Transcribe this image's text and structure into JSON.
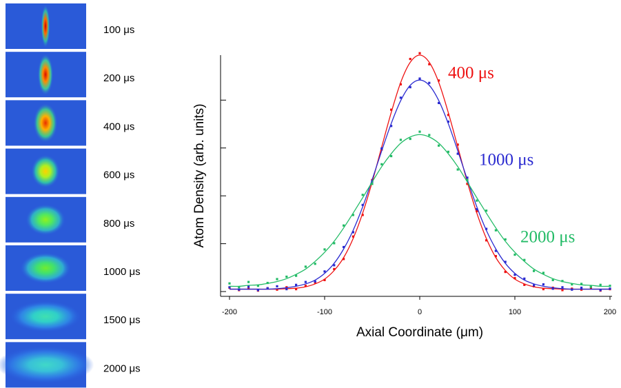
{
  "images": {
    "labels": [
      "100 μs",
      "200 μs",
      "400 μs",
      "600 μs",
      "800 μs",
      "1000 μs",
      "1500 μs",
      "2000 μs"
    ]
  },
  "chart_data": {
    "type": "scatter-fit",
    "xlabel": "Axial Coordinate (μm)",
    "ylabel": "Atom Density (arb. units)",
    "xlim": [
      -200,
      200
    ],
    "xticks": [
      -200,
      -100,
      0,
      100,
      200
    ],
    "ylim": [
      -0.1,
      4.94
    ],
    "yticks": [
      0,
      1,
      2,
      3,
      4
    ],
    "ytick_labels": false,
    "x": [
      -200,
      -190,
      -180,
      -170,
      -160,
      -150,
      -140,
      -130,
      -120,
      -110,
      -100,
      -90,
      -80,
      -70,
      -60,
      -50,
      -40,
      -30,
      -20,
      -10,
      0,
      10,
      20,
      30,
      40,
      50,
      60,
      70,
      80,
      90,
      100,
      110,
      120,
      130,
      140,
      150,
      160,
      170,
      180,
      190,
      200
    ],
    "series": [
      {
        "name": "400 μs",
        "color": "#ee1111",
        "values": [
          0.08,
          0.03,
          0.06,
          0.02,
          0.07,
          0.04,
          0.09,
          0.05,
          0.12,
          0.19,
          0.24,
          0.47,
          0.68,
          1.15,
          1.6,
          2.33,
          2.97,
          3.8,
          4.33,
          4.86,
          4.98,
          4.75,
          4.41,
          3.69,
          3.07,
          2.25,
          1.68,
          1.07,
          0.74,
          0.41,
          0.28,
          0.14,
          0.11,
          0.05,
          0.08,
          0.03,
          0.06,
          0.04,
          0.07,
          0.02,
          0.05
        ],
        "fit": [
          0.05,
          0.05,
          0.05,
          0.05,
          0.05,
          0.05,
          0.06,
          0.07,
          0.1,
          0.16,
          0.26,
          0.44,
          0.71,
          1.11,
          1.64,
          2.29,
          3.02,
          3.74,
          4.37,
          4.79,
          4.94,
          4.79,
          4.37,
          3.74,
          3.02,
          2.29,
          1.64,
          1.11,
          0.71,
          0.44,
          0.26,
          0.16,
          0.1,
          0.07,
          0.06,
          0.05,
          0.05,
          0.05,
          0.05,
          0.05,
          0.05
        ]
      },
      {
        "name": "1000 μs",
        "color": "#2a2ad0",
        "values": [
          0.09,
          0.04,
          0.1,
          0.03,
          0.07,
          0.11,
          0.05,
          0.14,
          0.2,
          0.21,
          0.42,
          0.55,
          0.93,
          1.24,
          1.81,
          2.3,
          2.99,
          3.46,
          4.05,
          4.27,
          4.45,
          4.36,
          3.94,
          3.55,
          2.88,
          2.38,
          1.72,
          1.31,
          0.85,
          0.62,
          0.35,
          0.27,
          0.13,
          0.15,
          0.06,
          0.09,
          0.04,
          0.08,
          0.11,
          0.03,
          0.06
        ],
        "fit": [
          0.05,
          0.05,
          0.05,
          0.05,
          0.05,
          0.06,
          0.08,
          0.11,
          0.16,
          0.24,
          0.38,
          0.59,
          0.89,
          1.28,
          1.77,
          2.34,
          2.94,
          3.51,
          3.99,
          4.31,
          4.42,
          4.31,
          3.99,
          3.51,
          2.94,
          2.34,
          1.77,
          1.28,
          0.89,
          0.59,
          0.38,
          0.24,
          0.16,
          0.11,
          0.08,
          0.06,
          0.05,
          0.05,
          0.05,
          0.05,
          0.05
        ]
      },
      {
        "name": "2000 μs",
        "color": "#22bb66",
        "values": [
          0.17,
          0.09,
          0.2,
          0.12,
          0.18,
          0.26,
          0.31,
          0.33,
          0.52,
          0.58,
          0.88,
          1.01,
          1.38,
          1.6,
          2.02,
          2.25,
          2.66,
          2.83,
          3.17,
          3.19,
          3.34,
          3.27,
          3.05,
          2.92,
          2.55,
          2.33,
          1.9,
          1.69,
          1.28,
          1.09,
          0.77,
          0.66,
          0.43,
          0.39,
          0.24,
          0.22,
          0.15,
          0.16,
          0.1,
          0.14,
          0.12
        ],
        "fit": [
          0.11,
          0.11,
          0.13,
          0.14,
          0.17,
          0.21,
          0.27,
          0.36,
          0.47,
          0.63,
          0.82,
          1.05,
          1.33,
          1.64,
          1.96,
          2.29,
          2.61,
          2.88,
          3.1,
          3.23,
          3.28,
          3.23,
          3.1,
          2.88,
          2.61,
          2.29,
          1.96,
          1.64,
          1.33,
          1.05,
          0.82,
          0.63,
          0.47,
          0.36,
          0.27,
          0.21,
          0.17,
          0.14,
          0.13,
          0.11,
          0.11
        ]
      }
    ]
  }
}
